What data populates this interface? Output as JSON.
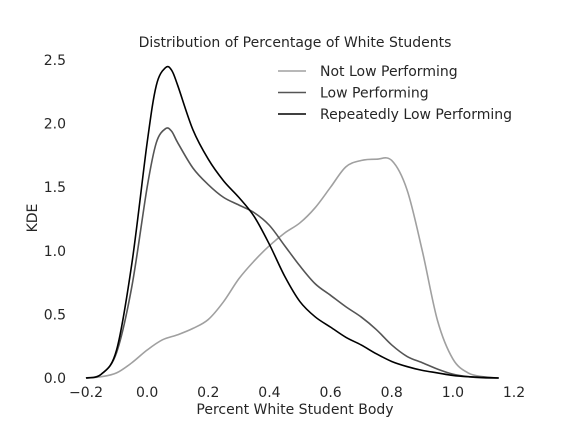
{
  "chart_data": {
    "type": "line",
    "title": "Distribution of Percentage of White Students",
    "xlabel": "Percent White Student Body",
    "ylabel": "KDE",
    "xlim": [
      -0.2,
      1.2
    ],
    "ylim": [
      0,
      2.5
    ],
    "xticks": [
      "−0.2",
      "0.0",
      "0.2",
      "0.4",
      "0.6",
      "0.8",
      "1.0",
      "1.2"
    ],
    "yticks": [
      "0.0",
      "0.5",
      "1.0",
      "1.5",
      "2.0",
      "2.5"
    ],
    "grid": false,
    "legend_position": "upper-right",
    "series": [
      {
        "name": "Not Low Performing",
        "color": "#a0a0a0",
        "x": [
          -0.2,
          -0.15,
          -0.1,
          -0.05,
          0.0,
          0.05,
          0.1,
          0.15,
          0.2,
          0.25,
          0.3,
          0.35,
          0.4,
          0.45,
          0.5,
          0.55,
          0.6,
          0.65,
          0.7,
          0.75,
          0.8,
          0.85,
          0.9,
          0.95,
          1.0,
          1.05,
          1.1,
          1.15
        ],
        "y": [
          0.0,
          0.01,
          0.04,
          0.12,
          0.22,
          0.3,
          0.34,
          0.39,
          0.46,
          0.6,
          0.78,
          0.92,
          1.04,
          1.14,
          1.22,
          1.34,
          1.5,
          1.66,
          1.71,
          1.72,
          1.71,
          1.48,
          1.0,
          0.45,
          0.15,
          0.04,
          0.01,
          0.0
        ]
      },
      {
        "name": "Low Performing",
        "color": "#555555",
        "x": [
          -0.2,
          -0.15,
          -0.1,
          -0.05,
          0.0,
          0.03,
          0.06,
          0.08,
          0.1,
          0.15,
          0.2,
          0.25,
          0.3,
          0.35,
          0.4,
          0.45,
          0.5,
          0.55,
          0.6,
          0.65,
          0.7,
          0.75,
          0.8,
          0.85,
          0.9,
          0.95,
          1.0,
          1.05,
          1.1,
          1.15
        ],
        "y": [
          0.0,
          0.03,
          0.2,
          0.72,
          1.5,
          1.85,
          1.96,
          1.94,
          1.85,
          1.65,
          1.52,
          1.42,
          1.36,
          1.3,
          1.2,
          1.04,
          0.88,
          0.74,
          0.65,
          0.56,
          0.48,
          0.38,
          0.26,
          0.17,
          0.12,
          0.07,
          0.03,
          0.01,
          0.0,
          0.0
        ]
      },
      {
        "name": "Repeatedly Low Performing",
        "color": "#000000",
        "x": [
          -0.2,
          -0.15,
          -0.1,
          -0.05,
          0.0,
          0.03,
          0.06,
          0.08,
          0.1,
          0.15,
          0.2,
          0.25,
          0.3,
          0.35,
          0.4,
          0.45,
          0.5,
          0.55,
          0.6,
          0.65,
          0.7,
          0.75,
          0.8,
          0.85,
          0.9,
          0.95,
          1.0,
          1.05,
          1.1,
          1.15
        ],
        "y": [
          0.0,
          0.03,
          0.22,
          0.9,
          1.85,
          2.3,
          2.44,
          2.42,
          2.3,
          1.95,
          1.72,
          1.55,
          1.42,
          1.27,
          1.05,
          0.8,
          0.6,
          0.48,
          0.4,
          0.32,
          0.26,
          0.19,
          0.13,
          0.09,
          0.06,
          0.04,
          0.02,
          0.01,
          0.005,
          0.0
        ]
      }
    ]
  }
}
